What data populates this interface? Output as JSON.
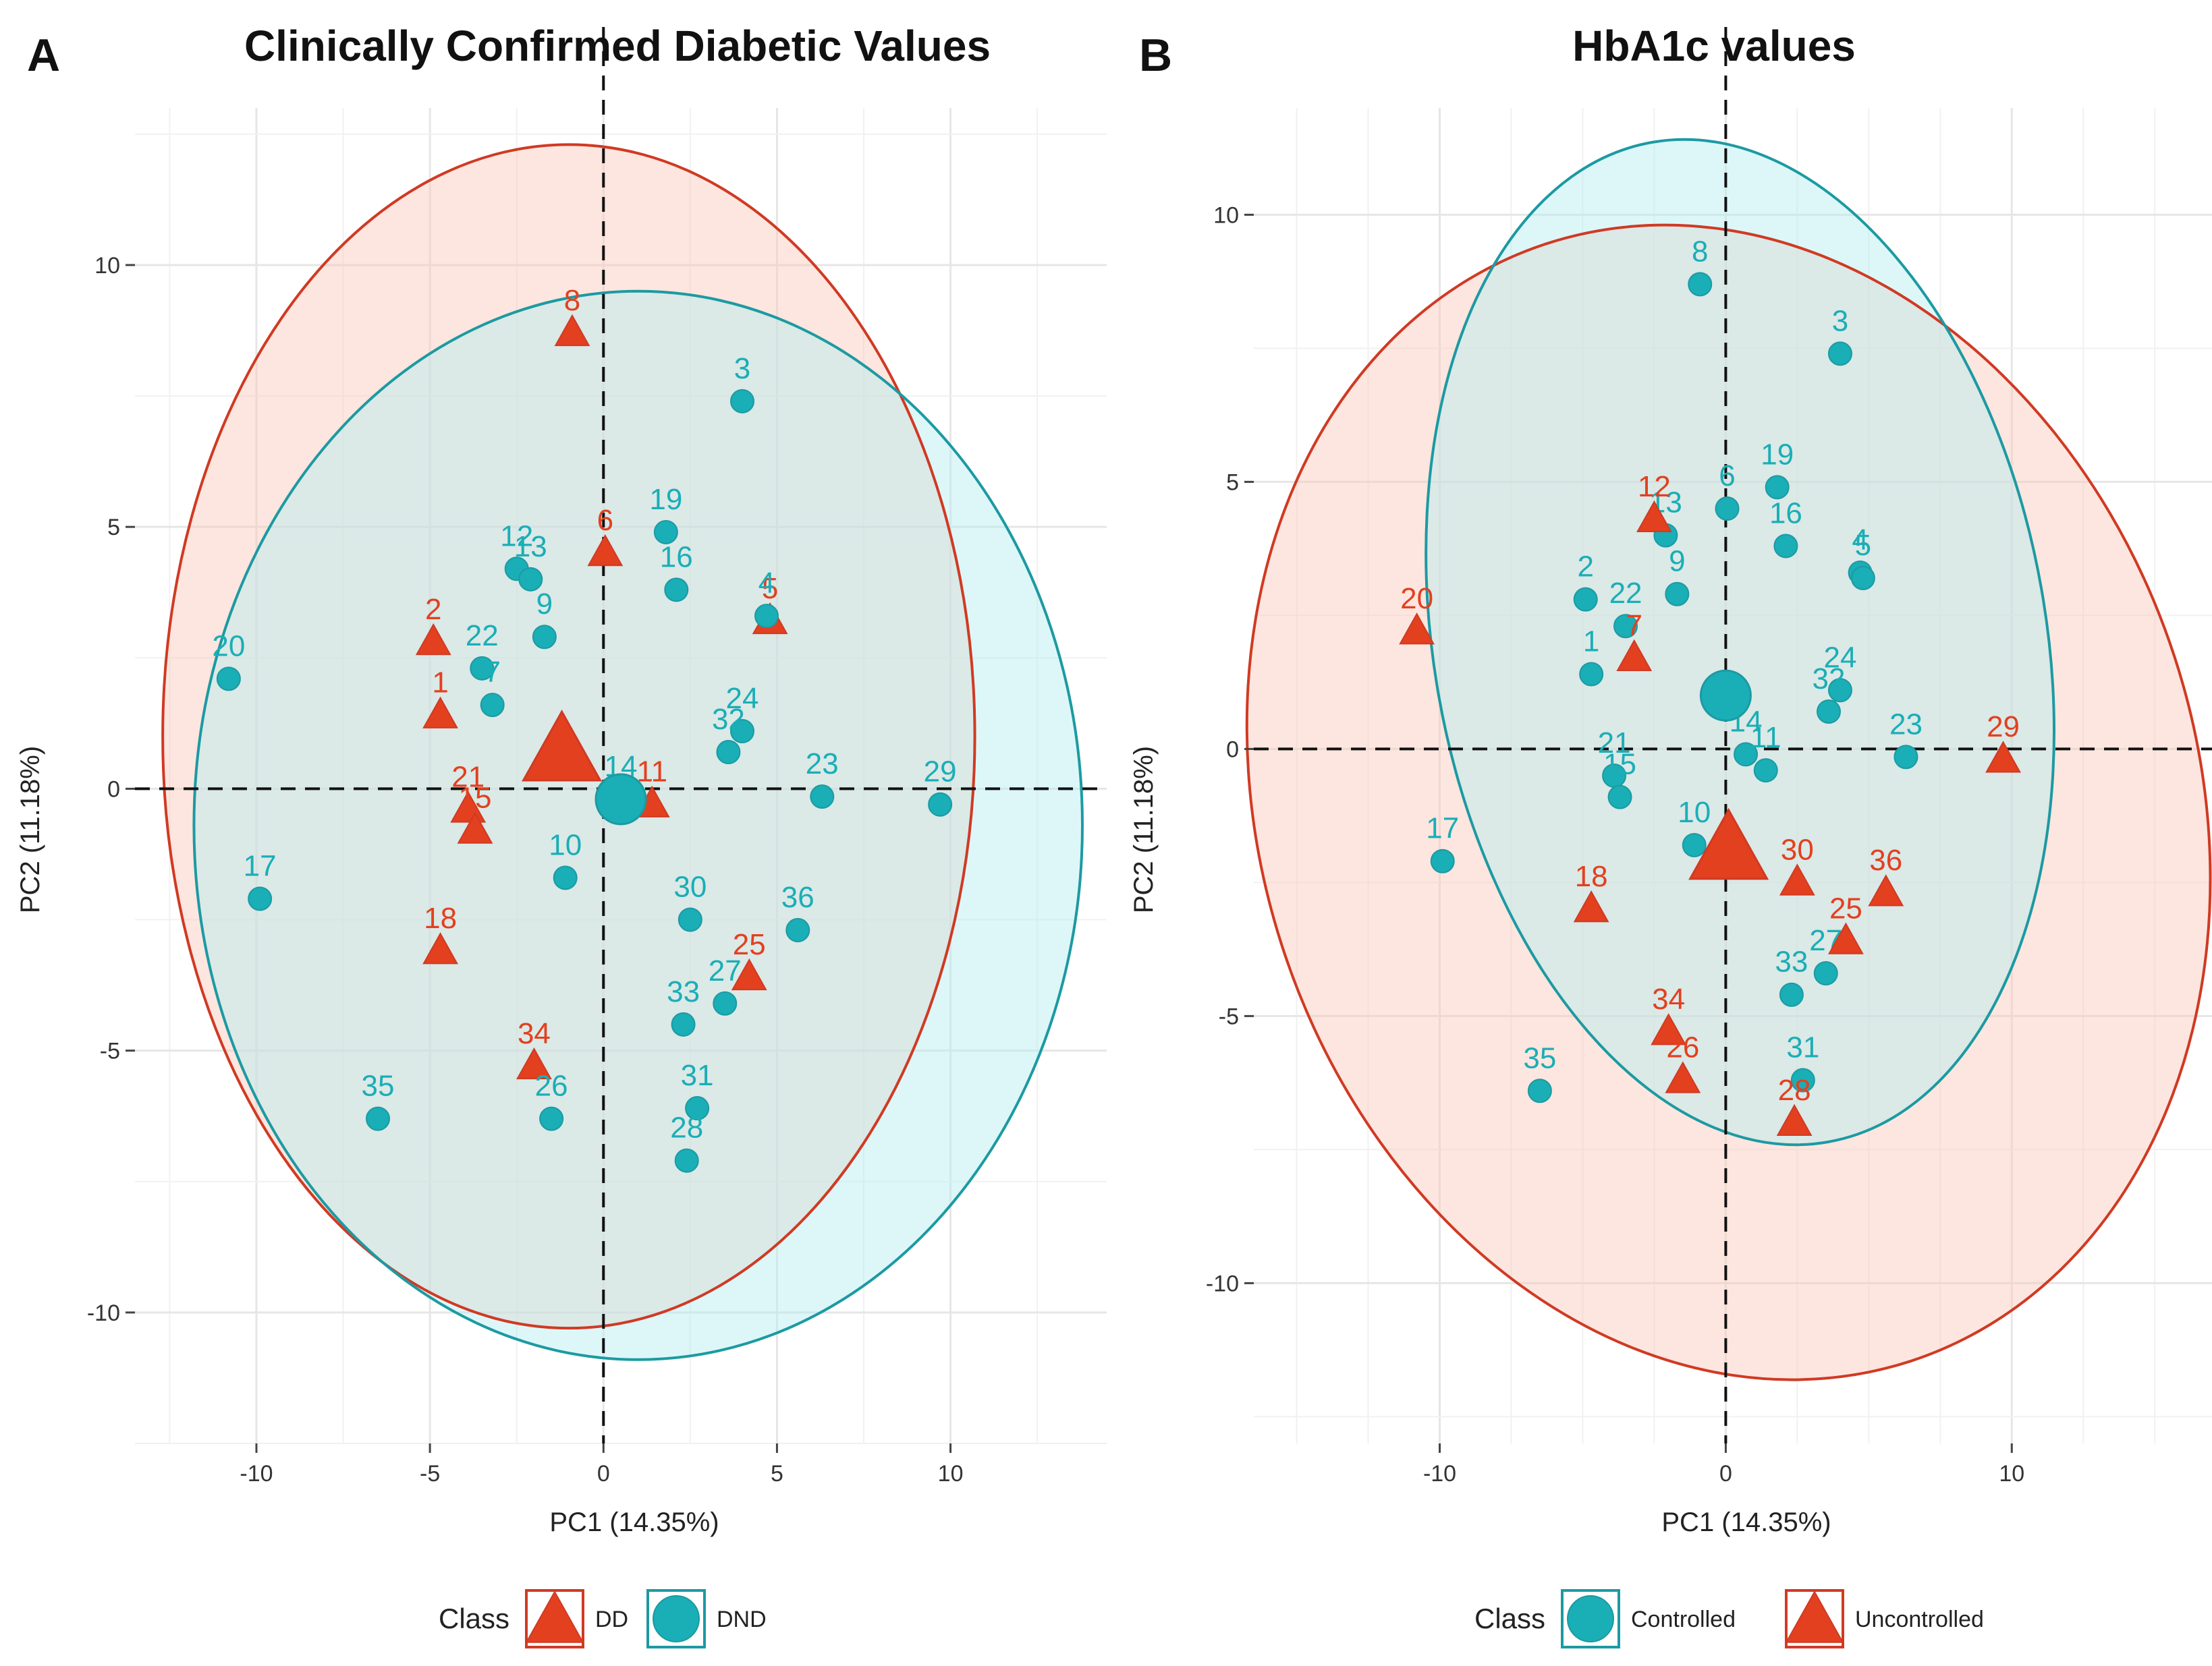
{
  "colors": {
    "red": "#e3401f",
    "teal": "#1aaeb6",
    "red_stroke": "#d03a23",
    "teal_stroke": "#1c9aa2",
    "red_fill": "#f9c8b8",
    "teal_fill": "#b3eef2"
  },
  "chart_data": [
    {
      "type": "scatter",
      "panel": "A",
      "title": "Clinically Confirmed Diabetic Values",
      "xlabel": "PC1 (14.35%)",
      "ylabel": "PC2 (11.18%)",
      "xlim": [
        -13.5,
        14.5
      ],
      "ylim": [
        -12.5,
        13
      ],
      "xticks": [
        -10,
        -5,
        0,
        5,
        10
      ],
      "yticks": [
        -10,
        -5,
        0,
        5,
        10
      ],
      "xtick_labels": [
        "-10",
        "-5",
        "0",
        "5",
        "10"
      ],
      "ytick_labels": [
        "-10",
        "-5",
        "0",
        "5",
        "10"
      ],
      "legend_title": "Class",
      "legend_position": "bottom",
      "legend": [
        {
          "name": "DD",
          "shape": "triangle",
          "color": "red"
        },
        {
          "name": "DND",
          "shape": "circle",
          "color": "teal"
        }
      ],
      "series": [
        {
          "name": "DD",
          "shape": "triangle",
          "color": "red",
          "points": [
            {
              "label": "8",
              "x": -0.9,
              "y": 8.7
            },
            {
              "label": "6",
              "x": 0.05,
              "y": 4.5
            },
            {
              "label": "2",
              "x": -4.9,
              "y": 2.8
            },
            {
              "label": "5",
              "x": 4.8,
              "y": 3.2
            },
            {
              "label": "1",
              "x": -4.7,
              "y": 1.4
            },
            {
              "label": "21",
              "x": -3.9,
              "y": -0.4
            },
            {
              "label": "15",
              "x": -3.7,
              "y": -0.8
            },
            {
              "label": "11",
              "x": 1.4,
              "y": -0.3
            },
            {
              "label": "18",
              "x": -4.7,
              "y": -3.1
            },
            {
              "label": "25",
              "x": 4.2,
              "y": -3.6
            },
            {
              "label": "34",
              "x": -2.0,
              "y": -5.3
            }
          ],
          "centroid": {
            "x": -1.2,
            "y": 0.7
          }
        },
        {
          "name": "DND",
          "shape": "circle",
          "color": "teal",
          "points": [
            {
              "label": "3",
              "x": 4.0,
              "y": 7.4
            },
            {
              "label": "19",
              "x": 1.8,
              "y": 4.9
            },
            {
              "label": "16",
              "x": 2.1,
              "y": 3.8
            },
            {
              "label": "12",
              "x": -2.5,
              "y": 4.2
            },
            {
              "label": "13",
              "x": -2.1,
              "y": 4.0
            },
            {
              "label": "4",
              "x": 4.7,
              "y": 3.3
            },
            {
              "label": "9",
              "x": -1.7,
              "y": 2.9
            },
            {
              "label": "22",
              "x": -3.5,
              "y": 2.3
            },
            {
              "label": "7",
              "x": -3.2,
              "y": 1.6
            },
            {
              "label": "20",
              "x": -10.8,
              "y": 2.1
            },
            {
              "label": "24",
              "x": 4.0,
              "y": 1.1
            },
            {
              "label": "32",
              "x": 3.6,
              "y": 0.7
            },
            {
              "label": "14",
              "x": 0.5,
              "y": -0.2
            },
            {
              "label": "23",
              "x": 6.3,
              "y": -0.15
            },
            {
              "label": "29",
              "x": 9.7,
              "y": -0.3
            },
            {
              "label": "17",
              "x": -9.9,
              "y": -2.1
            },
            {
              "label": "10",
              "x": -1.1,
              "y": -1.7
            },
            {
              "label": "30",
              "x": 2.5,
              "y": -2.5
            },
            {
              "label": "36",
              "x": 5.6,
              "y": -2.7
            },
            {
              "label": "27",
              "x": 3.5,
              "y": -4.1
            },
            {
              "label": "33",
              "x": 2.3,
              "y": -4.5
            },
            {
              "label": "35",
              "x": -6.5,
              "y": -6.3
            },
            {
              "label": "26",
              "x": -1.5,
              "y": -6.3
            },
            {
              "label": "31",
              "x": 2.7,
              "y": -6.1
            },
            {
              "label": "28",
              "x": 2.4,
              "y": -7.1
            }
          ],
          "centroid": {
            "x": 0.5,
            "y": -0.2
          }
        }
      ]
    },
    {
      "type": "scatter",
      "panel": "B",
      "title": "HbA1c values",
      "xlabel": "PC1 (14.35%)",
      "ylabel": "PC2 (11.18%)",
      "xlim": [
        -16.5,
        17
      ],
      "ylim": [
        -13,
        12
      ],
      "xticks": [
        -10,
        0,
        10
      ],
      "yticks": [
        -10,
        -5,
        0,
        5,
        10
      ],
      "xtick_labels": [
        "-10",
        "0",
        "10"
      ],
      "ytick_labels": [
        "-10",
        "-5",
        "0",
        "5",
        "10"
      ],
      "legend_title": "Class",
      "legend_position": "bottom",
      "legend": [
        {
          "name": "Controlled",
          "shape": "circle",
          "color": "teal"
        },
        {
          "name": "Uncontrolled",
          "shape": "triangle",
          "color": "red"
        }
      ],
      "series": [
        {
          "name": "Controlled",
          "shape": "circle",
          "color": "teal",
          "points": [
            {
              "label": "8",
              "x": -0.9,
              "y": 8.7
            },
            {
              "label": "3",
              "x": 4.0,
              "y": 7.4
            },
            {
              "label": "19",
              "x": 1.8,
              "y": 4.9
            },
            {
              "label": "6",
              "x": 0.05,
              "y": 4.5
            },
            {
              "label": "16",
              "x": 2.1,
              "y": 3.8
            },
            {
              "label": "13",
              "x": -2.1,
              "y": 4.0
            },
            {
              "label": "4",
              "x": 4.7,
              "y": 3.3
            },
            {
              "label": "5",
              "x": 4.8,
              "y": 3.2
            },
            {
              "label": "2",
              "x": -4.9,
              "y": 2.8
            },
            {
              "label": "22",
              "x": -3.5,
              "y": 2.3
            },
            {
              "label": "9",
              "x": -1.7,
              "y": 2.9
            },
            {
              "label": "1",
              "x": -4.7,
              "y": 1.4
            },
            {
              "label": "24",
              "x": 4.0,
              "y": 1.1
            },
            {
              "label": "32",
              "x": 3.6,
              "y": 0.7
            },
            {
              "label": "14",
              "x": 0.7,
              "y": -0.1
            },
            {
              "label": "11",
              "x": 1.4,
              "y": -0.4
            },
            {
              "label": "23",
              "x": 6.3,
              "y": -0.15
            },
            {
              "label": "21",
              "x": -3.9,
              "y": -0.5
            },
            {
              "label": "15",
              "x": -3.7,
              "y": -0.9
            },
            {
              "label": "17",
              "x": -9.9,
              "y": -2.1
            },
            {
              "label": "10",
              "x": -1.1,
              "y": -1.8
            },
            {
              "label": "27",
              "x": 3.5,
              "y": -4.2
            },
            {
              "label": "33",
              "x": 2.3,
              "y": -4.6
            },
            {
              "label": "35",
              "x": -6.5,
              "y": -6.4
            },
            {
              "label": "31",
              "x": 2.7,
              "y": -6.2
            }
          ],
          "centroid": {
            "x": 0.0,
            "y": 1.0
          }
        },
        {
          "name": "Uncontrolled",
          "shape": "triangle",
          "color": "red",
          "points": [
            {
              "label": "12",
              "x": -2.5,
              "y": 4.3
            },
            {
              "label": "7",
              "x": -3.2,
              "y": 1.7
            },
            {
              "label": "20",
              "x": -10.8,
              "y": 2.2
            },
            {
              "label": "29",
              "x": 9.7,
              "y": -0.2
            },
            {
              "label": "30",
              "x": 2.5,
              "y": -2.5
            },
            {
              "label": "36",
              "x": 5.6,
              "y": -2.7
            },
            {
              "label": "25",
              "x": 4.2,
              "y": -3.6
            },
            {
              "label": "18",
              "x": -4.7,
              "y": -3.0
            },
            {
              "label": "34",
              "x": -2.0,
              "y": -5.3
            },
            {
              "label": "26",
              "x": -1.5,
              "y": -6.2
            },
            {
              "label": "28",
              "x": 2.4,
              "y": -7.0
            }
          ],
          "centroid": {
            "x": 0.1,
            "y": -1.9
          }
        }
      ]
    }
  ]
}
